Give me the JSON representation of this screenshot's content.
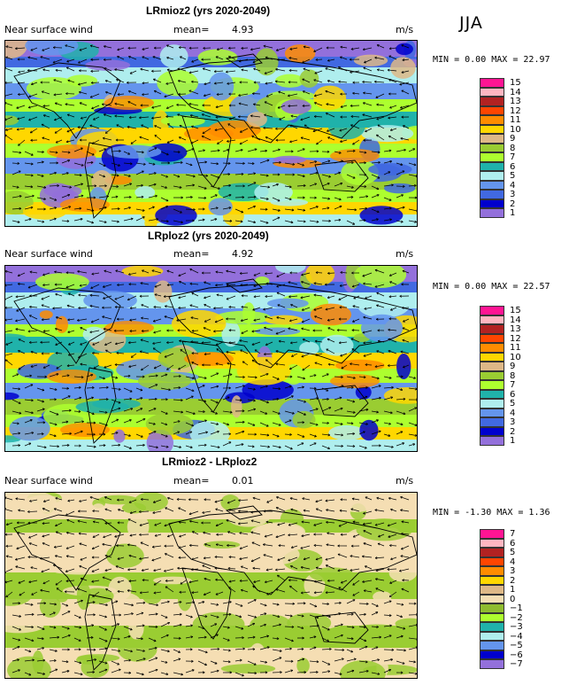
{
  "season": "JJA",
  "panels": [
    {
      "title": "LRmioz2 (yrs 2020-2049)",
      "variable": "Near surface wind",
      "mean_label": "mean=",
      "mean": "4.93",
      "units": "m/s",
      "min_label": "MIN =",
      "min": "0.00",
      "max_label": "MAX =",
      "max": "22.97",
      "legend": [
        "15",
        "14",
        "13",
        "12",
        "11",
        "10",
        "9",
        "8",
        "7",
        "6",
        "5",
        "4",
        "3",
        "2",
        "1"
      ]
    },
    {
      "title": "LRploz2 (yrs 2020-2049)",
      "variable": "Near surface wind",
      "mean_label": "mean=",
      "mean": "4.92",
      "units": "m/s",
      "min_label": "MIN =",
      "min": "0.00",
      "max_label": "MAX =",
      "max": "22.57",
      "legend": [
        "15",
        "14",
        "13",
        "12",
        "11",
        "10",
        "9",
        "8",
        "7",
        "6",
        "5",
        "4",
        "3",
        "2",
        "1"
      ]
    },
    {
      "title": "LRmioz2 - LRploz2",
      "variable": "Near surface wind",
      "mean_label": "mean=",
      "mean": "0.01",
      "units": "m/s",
      "min_label": "MIN =",
      "min": "-1.30",
      "max_label": "MAX =",
      "max": "1.36",
      "legend": [
        "7",
        "6",
        "5",
        "4",
        "3",
        "2",
        "1",
        "0",
        "−1",
        "−2",
        "−3",
        "−4",
        "−5",
        "−6",
        "−7"
      ]
    }
  ],
  "colors": {
    "speed": [
      "#ff1493",
      "#ffb6c1",
      "#b22222",
      "#ff4500",
      "#ff8c00",
      "#ffd700",
      "#deb887",
      "#9acd32",
      "#adff2f",
      "#20b2aa",
      "#afeeee",
      "#6495ed",
      "#4169e1",
      "#0000cd",
      "#9370db"
    ],
    "diff": [
      "#ff1493",
      "#ffb6c1",
      "#b22222",
      "#ff4500",
      "#ff8c00",
      "#ffd700",
      "#deb887",
      "#f5deb3",
      "#8fbc2f",
      "#adff2f",
      "#20b2aa",
      "#afeeee",
      "#6495ed",
      "#0000cd",
      "#9370db"
    ]
  }
}
